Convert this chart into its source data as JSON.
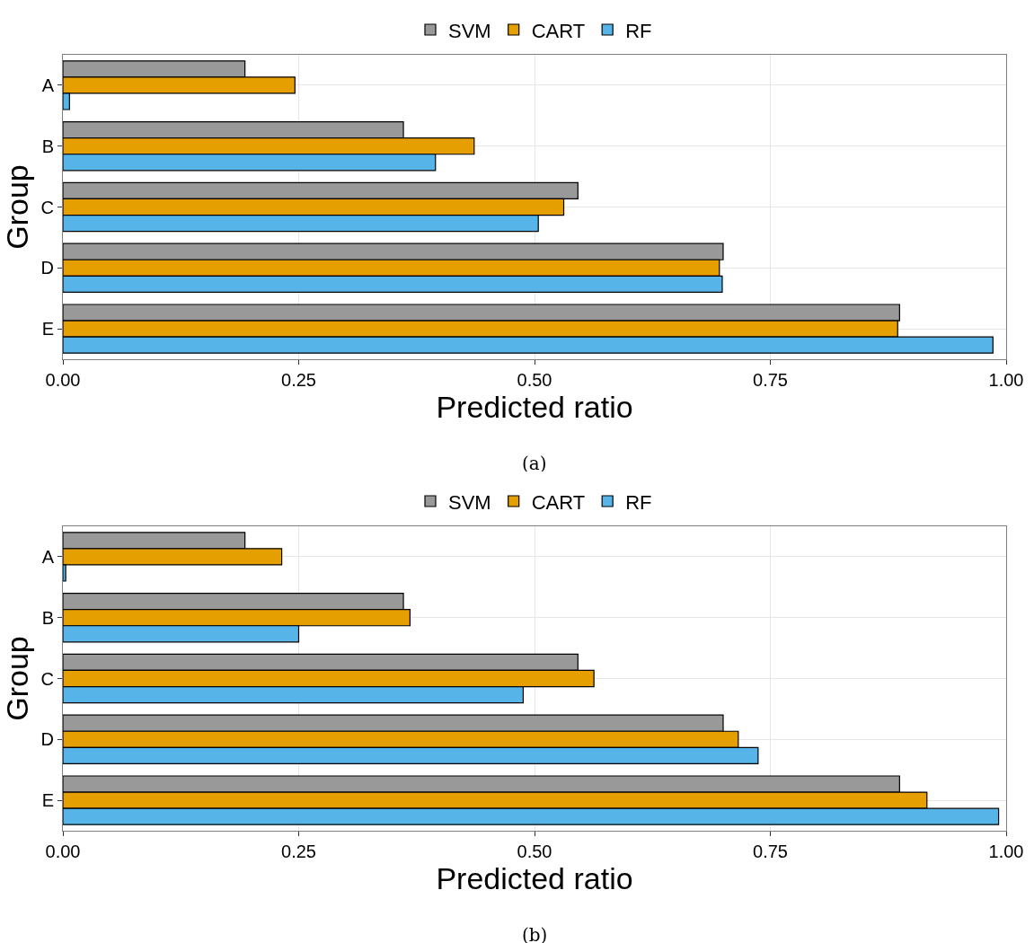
{
  "chart_data": [
    {
      "type": "bar",
      "orientation": "horizontal",
      "ylabel": "Group",
      "xlabel": "Predicted ratio",
      "categories": [
        "A",
        "B",
        "C",
        "D",
        "E"
      ],
      "xlim": [
        0,
        1
      ],
      "xticks": [
        {
          "value": 0,
          "label": "0.00"
        },
        {
          "value": 0.25,
          "label": "0.25"
        },
        {
          "value": 0.5,
          "label": "0.50"
        },
        {
          "value": 0.75,
          "label": "0.75"
        },
        {
          "value": 1,
          "label": "1.00"
        }
      ],
      "grid": true,
      "legend": "top",
      "annotations": [
        "(a)"
      ],
      "series": [
        {
          "name": "SVM",
          "color": "#999999",
          "values": [
            0.193,
            0.361,
            0.546,
            0.7,
            0.887
          ]
        },
        {
          "name": "CART",
          "color": "#e69f00",
          "values": [
            0.246,
            0.436,
            0.531,
            0.696,
            0.885
          ]
        },
        {
          "name": "RF",
          "color": "#56b4e9",
          "values": [
            0.007,
            0.395,
            0.504,
            0.699,
            0.986
          ]
        }
      ]
    },
    {
      "type": "bar",
      "orientation": "horizontal",
      "ylabel": "Group",
      "xlabel": "Predicted ratio",
      "categories": [
        "A",
        "B",
        "C",
        "D",
        "E"
      ],
      "xlim": [
        0,
        1
      ],
      "xticks": [
        {
          "value": 0,
          "label": "0.00"
        },
        {
          "value": 0.25,
          "label": "0.25"
        },
        {
          "value": 0.5,
          "label": "0.50"
        },
        {
          "value": 0.75,
          "label": "0.75"
        },
        {
          "value": 1,
          "label": "1.00"
        }
      ],
      "grid": true,
      "legend": "top",
      "annotations": [
        "(b)"
      ],
      "series": [
        {
          "name": "SVM",
          "color": "#999999",
          "values": [
            0.193,
            0.361,
            0.546,
            0.7,
            0.887
          ]
        },
        {
          "name": "CART",
          "color": "#e69f00",
          "values": [
            0.232,
            0.368,
            0.563,
            0.716,
            0.916
          ]
        },
        {
          "name": "RF",
          "color": "#56b4e9",
          "values": [
            0.003,
            0.25,
            0.488,
            0.737,
            0.992
          ]
        }
      ]
    }
  ]
}
